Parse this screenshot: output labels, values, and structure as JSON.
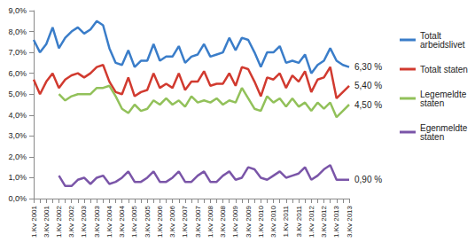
{
  "chart_data": {
    "type": "line",
    "categories": [
      "1.Kv 2001",
      null,
      "3.Kv 2001",
      null,
      "1.Kv 2002",
      null,
      "3.Kv 2002",
      null,
      "1.Kv 2003",
      null,
      "3.Kv 2003",
      null,
      "1.Kv 2004",
      null,
      "3.Kv 2004",
      null,
      "1.Kv 2005",
      null,
      "3.Kv 2005",
      null,
      "1.Kv 2006",
      null,
      "3.Kv 2006",
      null,
      "1.Kv 2007",
      null,
      "3.Kv 2007",
      null,
      "1.Kv 2008",
      null,
      "3.Kv 2008",
      null,
      "1.Kv 2009",
      null,
      "3.Kv 2009",
      null,
      "1.Kv 2010",
      null,
      "3.Kv 2010",
      null,
      "1.Kv 2011",
      null,
      "3.Kv 2011",
      null,
      "1.Kv 2012",
      null,
      "3.Kv 2012",
      null,
      "1.Kv 2013",
      null,
      "3.Kv 2013"
    ],
    "series": [
      {
        "name": "Totalt arbeidslivet",
        "color": "#3a7dc9",
        "values": [
          7.6,
          7.0,
          7.4,
          8.2,
          7.2,
          7.7,
          8.0,
          8.2,
          7.9,
          8.1,
          8.5,
          8.3,
          7.2,
          6.5,
          6.4,
          7.1,
          6.3,
          6.6,
          6.6,
          7.4,
          6.6,
          6.8,
          6.8,
          7.3,
          6.5,
          6.8,
          6.9,
          7.4,
          6.8,
          6.9,
          7.0,
          7.7,
          7.1,
          7.7,
          7.6,
          7.0,
          6.3,
          7.0,
          7.0,
          7.3,
          6.5,
          6.6,
          6.5,
          6.9,
          6.0,
          6.4,
          6.6,
          7.2,
          6.6,
          6.4,
          6.3
        ]
      },
      {
        "name": "Totalt staten",
        "color": "#d13a2f",
        "values": [
          5.7,
          5.0,
          5.6,
          6.0,
          5.3,
          5.7,
          5.9,
          6.0,
          5.8,
          6.0,
          6.3,
          6.4,
          5.6,
          5.1,
          5.0,
          5.8,
          4.9,
          5.1,
          5.2,
          6.0,
          5.3,
          5.5,
          5.3,
          6.0,
          5.2,
          5.6,
          5.6,
          6.1,
          5.4,
          5.5,
          5.5,
          6.0,
          5.4,
          6.3,
          6.2,
          5.6,
          4.9,
          5.8,
          5.7,
          6.0,
          5.3,
          5.9,
          5.6,
          6.1,
          5.1,
          5.7,
          5.8,
          6.3,
          4.8,
          5.1,
          5.4
        ]
      },
      {
        "name": "Legemeldte staten",
        "color": "#92c15a",
        "values": [
          null,
          null,
          null,
          null,
          5.0,
          4.7,
          4.9,
          5.0,
          5.0,
          5.0,
          5.3,
          5.3,
          5.4,
          4.9,
          4.3,
          4.1,
          4.5,
          4.2,
          4.3,
          4.7,
          4.5,
          4.8,
          4.5,
          4.7,
          4.4,
          4.9,
          4.6,
          4.7,
          4.6,
          4.8,
          4.5,
          4.7,
          4.6,
          5.3,
          4.8,
          4.3,
          4.2,
          4.9,
          4.6,
          4.8,
          4.4,
          4.8,
          4.4,
          4.6,
          4.2,
          4.6,
          4.3,
          4.6,
          3.9,
          4.2,
          4.5
        ]
      },
      {
        "name": "Egenmeldte staten",
        "color": "#7a55a8",
        "values": [
          null,
          null,
          null,
          null,
          1.1,
          0.6,
          0.6,
          0.9,
          1.0,
          0.7,
          1.0,
          1.1,
          0.7,
          0.8,
          1.0,
          1.3,
          0.8,
          0.8,
          1.0,
          1.3,
          0.8,
          0.8,
          1.0,
          1.3,
          0.8,
          0.8,
          1.1,
          1.3,
          0.8,
          0.8,
          1.1,
          1.3,
          0.9,
          1.0,
          1.5,
          1.4,
          1.0,
          0.9,
          1.1,
          1.3,
          1.0,
          1.1,
          1.2,
          1.5,
          0.9,
          1.1,
          1.4,
          1.6,
          0.9,
          0.9,
          0.9
        ]
      }
    ],
    "annotations": [
      {
        "series": "Totalt arbeidslivet",
        "text": "6,30 %"
      },
      {
        "series": "Totalt staten",
        "text": "5,40 %"
      },
      {
        "series": "Legemeldte staten",
        "text": "4,50 %"
      },
      {
        "series": "Egenmeldte staten",
        "text": "0,90 %"
      }
    ],
    "ylim": [
      0,
      9
    ],
    "yticks": [
      {
        "value": 0,
        "label": "0,0%"
      },
      {
        "value": 1,
        "label": "1,0%"
      },
      {
        "value": 2,
        "label": "2,0%"
      },
      {
        "value": 3,
        "label": "3,0%"
      },
      {
        "value": 4,
        "label": "4,0%"
      },
      {
        "value": 5,
        "label": "5,0%"
      },
      {
        "value": 6,
        "label": "6,0%"
      },
      {
        "value": 7,
        "label": "7,0%"
      },
      {
        "value": 8,
        "label": "8,0%"
      },
      {
        "value": 9,
        "label": "9,0%"
      }
    ],
    "grid": false,
    "legend": "right"
  }
}
